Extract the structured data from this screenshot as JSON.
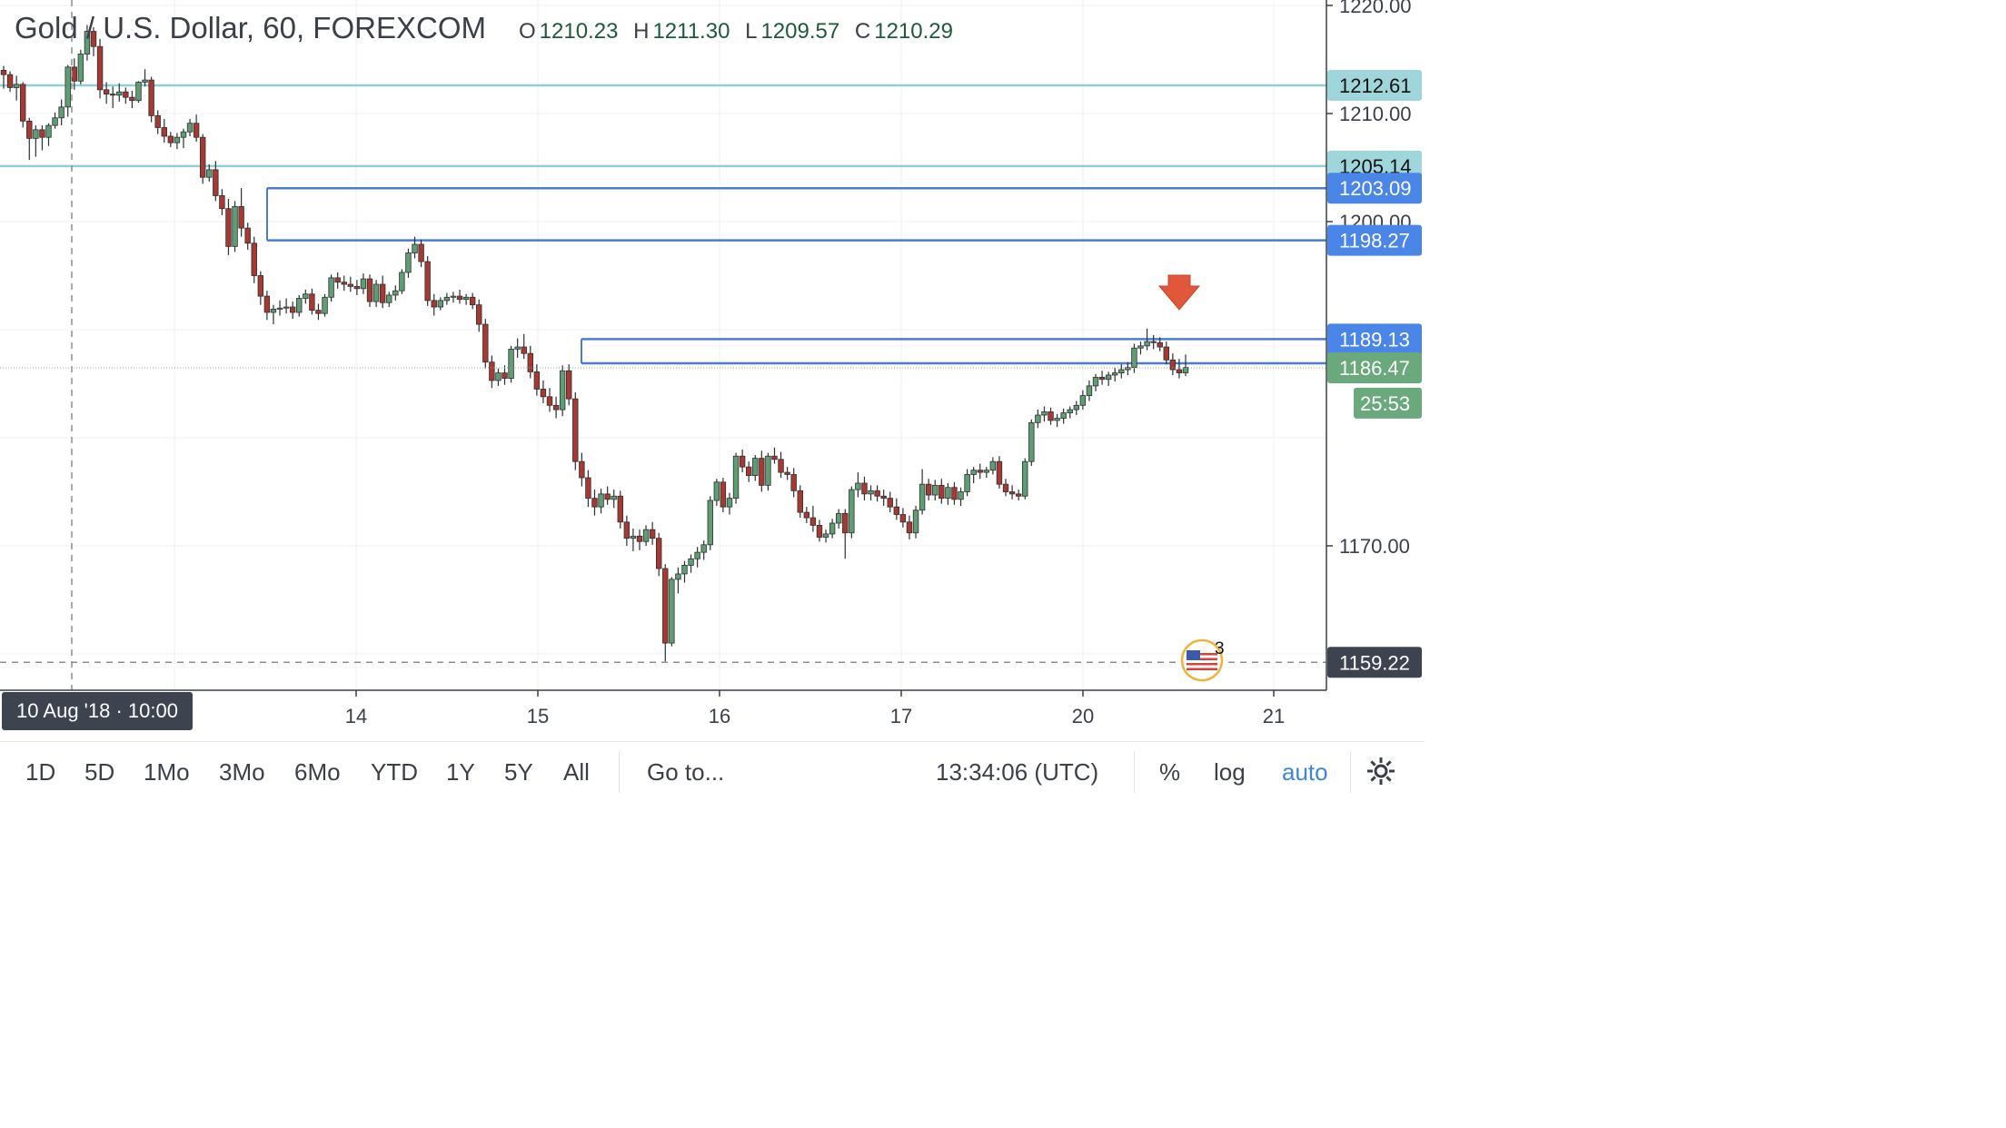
{
  "header": {
    "symbol": "Gold / U.S. Dollar, 60, FOREXCOM",
    "open_label": "O",
    "open": "1210.23",
    "high_label": "H",
    "high": "1211.30",
    "low_label": "L",
    "low": "1209.57",
    "close_label": "C",
    "close": "1210.29"
  },
  "chart_data": {
    "type": "candlestick",
    "x_ticks": [
      "14",
      "15",
      "16",
      "17",
      "20",
      "21"
    ],
    "y_ticks": [
      "1220.00",
      "1210.00",
      "1200.00",
      "1170.00"
    ],
    "crosshair_date": "10 Aug '18 · 10:00",
    "price_labels": [
      {
        "value": "1212.61",
        "y": 1212.61,
        "kind": "hline-teal",
        "bg": "#9fd6dc",
        "fg": "#111111"
      },
      {
        "value": "1205.14",
        "y": 1205.14,
        "kind": "hline-teal",
        "bg": "#9fd6dc",
        "fg": "#111111"
      },
      {
        "value": "1203.09",
        "y": 1203.09,
        "kind": "hline-blue",
        "bg": "#4a86e8",
        "fg": "#ffffff"
      },
      {
        "value": "1198.27",
        "y": 1198.27,
        "kind": "hline-blue",
        "bg": "#4a86e8",
        "fg": "#ffffff"
      },
      {
        "value": "1189.13",
        "y": 1189.13,
        "kind": "hline-blue",
        "bg": "#4a86e8",
        "fg": "#ffffff"
      },
      {
        "value": "1186.89",
        "y": 1186.89,
        "kind": "hline-blue",
        "bg": "#4a86e8",
        "fg": "#ffffff"
      },
      {
        "value": "1186.47",
        "y": 1186.47,
        "kind": "last-price",
        "bg": "#6aa97c",
        "fg": "#ffffff"
      },
      {
        "value": "1159.22",
        "y": 1159.22,
        "kind": "crosshair",
        "bg": "#3e4350",
        "fg": "#ffffff"
      }
    ],
    "countdown": "25:53",
    "event_count": "3",
    "colors": {
      "up": "#5f9d73",
      "down": "#a63a32",
      "teal_line": "#8ed0d6",
      "blue_line": "#4a7bd6",
      "arrow": "#e0573a"
    },
    "candles": [
      [
        1214.0,
        1214.4,
        1212.3,
        1213.6
      ],
      [
        1213.6,
        1213.9,
        1212.0,
        1212.4
      ],
      [
        1212.4,
        1213.5,
        1211.2,
        1212.7
      ],
      [
        1212.7,
        1212.9,
        1208.7,
        1209.3
      ],
      [
        1209.3,
        1209.6,
        1205.7,
        1207.7
      ],
      [
        1207.7,
        1208.9,
        1206.0,
        1208.5
      ],
      [
        1208.5,
        1208.9,
        1206.6,
        1207.8
      ],
      [
        1207.8,
        1209.1,
        1207.0,
        1208.9
      ],
      [
        1208.9,
        1210.1,
        1208.6,
        1209.6
      ],
      [
        1209.6,
        1211.3,
        1208.9,
        1210.6
      ],
      [
        1210.6,
        1214.5,
        1209.7,
        1214.3
      ],
      [
        1214.3,
        1215.1,
        1212.2,
        1213.0
      ],
      [
        1213.0,
        1215.9,
        1212.7,
        1215.5
      ],
      [
        1215.5,
        1218.2,
        1214.9,
        1217.6
      ],
      [
        1217.6,
        1218.0,
        1215.3,
        1216.2
      ],
      [
        1216.2,
        1216.9,
        1211.4,
        1212.2
      ],
      [
        1212.2,
        1212.9,
        1210.9,
        1211.8
      ],
      [
        1211.8,
        1212.5,
        1210.5,
        1211.7
      ],
      [
        1211.7,
        1212.8,
        1211.1,
        1212.0
      ],
      [
        1212.0,
        1212.4,
        1210.9,
        1211.5
      ],
      [
        1211.5,
        1212.1,
        1210.5,
        1211.2
      ],
      [
        1211.2,
        1213.0,
        1211.0,
        1212.9
      ],
      [
        1212.9,
        1214.1,
        1212.5,
        1213.1
      ],
      [
        1213.1,
        1213.4,
        1209.2,
        1209.8
      ],
      [
        1209.8,
        1210.3,
        1208.1,
        1208.7
      ],
      [
        1208.7,
        1209.5,
        1207.3,
        1207.9
      ],
      [
        1207.9,
        1208.3,
        1206.9,
        1207.3
      ],
      [
        1207.3,
        1208.2,
        1206.7,
        1207.8
      ],
      [
        1207.8,
        1208.6,
        1206.8,
        1208.3
      ],
      [
        1208.3,
        1209.5,
        1207.9,
        1209.1
      ],
      [
        1209.1,
        1209.9,
        1207.4,
        1207.8
      ],
      [
        1207.8,
        1208.1,
        1203.5,
        1204.1
      ],
      [
        1204.1,
        1205.3,
        1203.7,
        1204.8
      ],
      [
        1204.8,
        1205.6,
        1201.9,
        1202.4
      ],
      [
        1202.4,
        1203.0,
        1200.6,
        1201.2
      ],
      [
        1201.2,
        1202.1,
        1196.9,
        1197.7
      ],
      [
        1197.7,
        1201.9,
        1197.2,
        1201.4
      ],
      [
        1201.4,
        1203.1,
        1198.6,
        1199.4
      ],
      [
        1199.4,
        1199.9,
        1197.4,
        1198.0
      ],
      [
        1198.0,
        1198.6,
        1194.3,
        1195.0
      ],
      [
        1195.0,
        1195.4,
        1192.3,
        1193.1
      ],
      [
        1193.1,
        1193.6,
        1190.9,
        1191.6
      ],
      [
        1191.6,
        1192.3,
        1190.5,
        1191.9
      ],
      [
        1191.9,
        1192.7,
        1191.3,
        1192.0
      ],
      [
        1192.0,
        1192.9,
        1191.5,
        1192.1
      ],
      [
        1192.1,
        1192.6,
        1191.0,
        1191.6
      ],
      [
        1191.6,
        1193.2,
        1191.2,
        1192.9
      ],
      [
        1192.9,
        1193.7,
        1192.4,
        1193.3
      ],
      [
        1193.3,
        1193.8,
        1191.4,
        1191.8
      ],
      [
        1191.8,
        1192.4,
        1190.9,
        1191.5
      ],
      [
        1191.5,
        1193.3,
        1191.2,
        1193.0
      ],
      [
        1193.0,
        1195.1,
        1192.6,
        1194.8
      ],
      [
        1194.8,
        1195.3,
        1193.8,
        1194.4
      ],
      [
        1194.4,
        1195.0,
        1193.6,
        1194.2
      ],
      [
        1194.2,
        1194.9,
        1193.5,
        1194.0
      ],
      [
        1194.0,
        1194.6,
        1193.2,
        1193.8
      ],
      [
        1193.8,
        1195.2,
        1193.3,
        1194.7
      ],
      [
        1194.7,
        1195.1,
        1192.1,
        1192.6
      ],
      [
        1192.6,
        1194.6,
        1192.1,
        1194.2
      ],
      [
        1194.2,
        1195.0,
        1192.0,
        1192.5
      ],
      [
        1192.5,
        1193.5,
        1192.1,
        1193.2
      ],
      [
        1193.2,
        1194.1,
        1192.7,
        1193.6
      ],
      [
        1193.6,
        1195.6,
        1193.3,
        1195.3
      ],
      [
        1195.3,
        1197.5,
        1194.8,
        1197.1
      ],
      [
        1197.1,
        1198.6,
        1196.6,
        1197.9
      ],
      [
        1197.9,
        1198.3,
        1195.8,
        1196.3
      ],
      [
        1196.3,
        1196.8,
        1192.2,
        1192.7
      ],
      [
        1192.7,
        1193.3,
        1191.3,
        1192.1
      ],
      [
        1192.1,
        1193.0,
        1191.8,
        1192.7
      ],
      [
        1192.7,
        1193.4,
        1192.3,
        1193.0
      ],
      [
        1193.0,
        1193.5,
        1192.5,
        1193.1
      ],
      [
        1193.1,
        1193.7,
        1192.4,
        1192.8
      ],
      [
        1192.8,
        1193.3,
        1192.3,
        1193.0
      ],
      [
        1193.0,
        1193.4,
        1191.9,
        1192.3
      ],
      [
        1192.3,
        1192.8,
        1189.8,
        1190.5
      ],
      [
        1190.5,
        1191.0,
        1186.4,
        1187.0
      ],
      [
        1187.0,
        1187.6,
        1184.6,
        1185.3
      ],
      [
        1185.3,
        1186.4,
        1184.8,
        1186.0
      ],
      [
        1186.0,
        1186.7,
        1184.9,
        1185.5
      ],
      [
        1185.5,
        1188.5,
        1185.1,
        1188.2
      ],
      [
        1188.2,
        1189.2,
        1187.4,
        1188.4
      ],
      [
        1188.4,
        1189.6,
        1187.3,
        1187.8
      ],
      [
        1187.8,
        1188.5,
        1185.5,
        1186.1
      ],
      [
        1186.1,
        1186.8,
        1183.9,
        1184.5
      ],
      [
        1184.5,
        1185.3,
        1183.2,
        1183.8
      ],
      [
        1183.8,
        1184.6,
        1182.4,
        1183.0
      ],
      [
        1183.0,
        1183.8,
        1181.8,
        1182.6
      ],
      [
        1182.6,
        1186.7,
        1182.0,
        1186.2
      ],
      [
        1186.2,
        1186.8,
        1183.0,
        1183.6
      ],
      [
        1183.6,
        1184.2,
        1177.0,
        1177.8
      ],
      [
        1177.8,
        1178.6,
        1175.5,
        1176.3
      ],
      [
        1176.3,
        1177.0,
        1173.6,
        1174.4
      ],
      [
        1174.4,
        1175.2,
        1172.8,
        1173.6
      ],
      [
        1173.6,
        1175.3,
        1173.0,
        1174.8
      ],
      [
        1174.8,
        1175.5,
        1173.8,
        1174.3
      ],
      [
        1174.3,
        1175.2,
        1173.5,
        1174.6
      ],
      [
        1174.6,
        1175.1,
        1171.6,
        1172.2
      ],
      [
        1172.2,
        1172.8,
        1170.0,
        1170.7
      ],
      [
        1170.7,
        1171.6,
        1169.5,
        1170.9
      ],
      [
        1170.9,
        1171.5,
        1169.6,
        1170.4
      ],
      [
        1170.4,
        1171.9,
        1170.0,
        1171.5
      ],
      [
        1171.5,
        1172.2,
        1170.1,
        1170.7
      ],
      [
        1170.7,
        1171.2,
        1167.2,
        1167.9
      ],
      [
        1167.9,
        1168.3,
        1159.3,
        1161.0
      ],
      [
        1161.0,
        1167.1,
        1160.7,
        1166.9
      ],
      [
        1166.9,
        1168.0,
        1165.6,
        1167.4
      ],
      [
        1167.4,
        1168.6,
        1166.6,
        1168.2
      ],
      [
        1168.2,
        1169.2,
        1167.5,
        1168.8
      ],
      [
        1168.8,
        1169.9,
        1168.0,
        1169.4
      ],
      [
        1169.4,
        1170.5,
        1168.7,
        1170.1
      ],
      [
        1170.1,
        1174.6,
        1169.6,
        1174.2
      ],
      [
        1174.2,
        1176.2,
        1173.7,
        1175.9
      ],
      [
        1175.9,
        1176.3,
        1173.1,
        1173.6
      ],
      [
        1173.6,
        1174.9,
        1172.9,
        1174.4
      ],
      [
        1174.4,
        1178.6,
        1173.9,
        1178.3
      ],
      [
        1178.3,
        1178.9,
        1176.8,
        1177.3
      ],
      [
        1177.3,
        1177.8,
        1175.9,
        1176.5
      ],
      [
        1176.5,
        1178.4,
        1176.0,
        1178.1
      ],
      [
        1178.1,
        1178.8,
        1175.0,
        1175.6
      ],
      [
        1175.6,
        1178.6,
        1175.1,
        1178.3
      ],
      [
        1178.3,
        1179.1,
        1177.6,
        1178.0
      ],
      [
        1178.0,
        1178.7,
        1176.3,
        1176.8
      ],
      [
        1176.8,
        1177.3,
        1176.1,
        1176.6
      ],
      [
        1176.6,
        1177.2,
        1174.5,
        1175.1
      ],
      [
        1175.1,
        1175.6,
        1172.6,
        1173.1
      ],
      [
        1173.1,
        1173.6,
        1172.1,
        1172.6
      ],
      [
        1172.6,
        1173.7,
        1171.3,
        1171.9
      ],
      [
        1171.9,
        1172.4,
        1170.4,
        1170.8
      ],
      [
        1170.8,
        1171.5,
        1170.3,
        1171.1
      ],
      [
        1171.1,
        1172.5,
        1170.7,
        1172.1
      ],
      [
        1172.1,
        1173.4,
        1171.6,
        1173.0
      ],
      [
        1173.0,
        1173.4,
        1168.8,
        1171.2
      ],
      [
        1171.2,
        1175.5,
        1170.7,
        1175.2
      ],
      [
        1175.2,
        1176.8,
        1174.5,
        1175.8
      ],
      [
        1175.8,
        1176.4,
        1174.2,
        1174.8
      ],
      [
        1174.8,
        1175.6,
        1174.2,
        1175.1
      ],
      [
        1175.1,
        1175.6,
        1174.1,
        1174.6
      ],
      [
        1174.6,
        1175.2,
        1173.7,
        1174.4
      ],
      [
        1174.4,
        1175.0,
        1173.1,
        1173.6
      ],
      [
        1173.6,
        1174.4,
        1172.4,
        1172.9
      ],
      [
        1172.9,
        1173.5,
        1171.7,
        1172.2
      ],
      [
        1172.2,
        1172.8,
        1170.6,
        1171.2
      ],
      [
        1171.2,
        1173.7,
        1170.7,
        1173.3
      ],
      [
        1173.3,
        1177.1,
        1172.9,
        1175.7
      ],
      [
        1175.7,
        1176.2,
        1174.2,
        1174.7
      ],
      [
        1174.7,
        1176.1,
        1174.2,
        1175.6
      ],
      [
        1175.6,
        1176.2,
        1173.9,
        1174.4
      ],
      [
        1174.4,
        1175.8,
        1173.8,
        1175.4
      ],
      [
        1175.4,
        1175.9,
        1173.8,
        1174.3
      ],
      [
        1174.3,
        1175.4,
        1173.7,
        1175.0
      ],
      [
        1175.0,
        1177.1,
        1174.6,
        1176.6
      ],
      [
        1176.6,
        1177.3,
        1175.8,
        1177.0
      ],
      [
        1177.0,
        1177.6,
        1176.2,
        1176.8
      ],
      [
        1176.8,
        1177.3,
        1176.3,
        1177.0
      ],
      [
        1177.0,
        1178.2,
        1176.6,
        1177.8
      ],
      [
        1177.8,
        1178.3,
        1175.3,
        1175.7
      ],
      [
        1175.7,
        1176.2,
        1174.6,
        1175.0
      ],
      [
        1175.0,
        1175.6,
        1174.3,
        1174.8
      ],
      [
        1174.8,
        1175.2,
        1174.2,
        1174.6
      ],
      [
        1174.6,
        1178.1,
        1174.3,
        1177.8
      ],
      [
        1177.8,
        1181.7,
        1177.4,
        1181.4
      ],
      [
        1181.4,
        1182.6,
        1180.9,
        1182.1
      ],
      [
        1182.1,
        1182.9,
        1181.5,
        1182.4
      ],
      [
        1182.4,
        1182.8,
        1181.2,
        1181.6
      ],
      [
        1181.6,
        1182.2,
        1181.0,
        1181.8
      ],
      [
        1181.8,
        1182.7,
        1181.3,
        1182.3
      ],
      [
        1182.3,
        1182.9,
        1181.8,
        1182.6
      ],
      [
        1182.6,
        1183.4,
        1182.1,
        1183.0
      ],
      [
        1183.0,
        1184.4,
        1182.6,
        1183.9
      ],
      [
        1183.9,
        1185.3,
        1183.4,
        1184.8
      ],
      [
        1184.8,
        1185.9,
        1184.3,
        1185.6
      ],
      [
        1185.6,
        1186.2,
        1184.9,
        1185.4
      ],
      [
        1185.4,
        1186.1,
        1184.8,
        1185.8
      ],
      [
        1185.8,
        1186.5,
        1185.2,
        1186.0
      ],
      [
        1186.0,
        1186.8,
        1185.5,
        1186.3
      ],
      [
        1186.3,
        1187.0,
        1185.8,
        1186.5
      ],
      [
        1186.5,
        1188.7,
        1186.0,
        1188.3
      ],
      [
        1188.3,
        1188.9,
        1187.7,
        1188.5
      ],
      [
        1188.5,
        1190.1,
        1188.1,
        1188.9
      ],
      [
        1188.9,
        1189.5,
        1188.2,
        1188.8
      ],
      [
        1188.8,
        1189.3,
        1188.0,
        1188.4
      ],
      [
        1188.4,
        1188.9,
        1186.8,
        1187.2
      ],
      [
        1187.2,
        1187.8,
        1185.8,
        1186.3
      ],
      [
        1186.3,
        1187.3,
        1185.5,
        1186.0
      ],
      [
        1186.0,
        1187.7,
        1185.7,
        1186.5
      ]
    ]
  },
  "toolbar": {
    "ranges": [
      "1D",
      "5D",
      "1Mo",
      "3Mo",
      "6Mo",
      "YTD",
      "1Y",
      "5Y",
      "All"
    ],
    "goto": "Go to...",
    "time": "13:34:06 (UTC)",
    "percent": "%",
    "log": "log",
    "auto": "auto"
  }
}
